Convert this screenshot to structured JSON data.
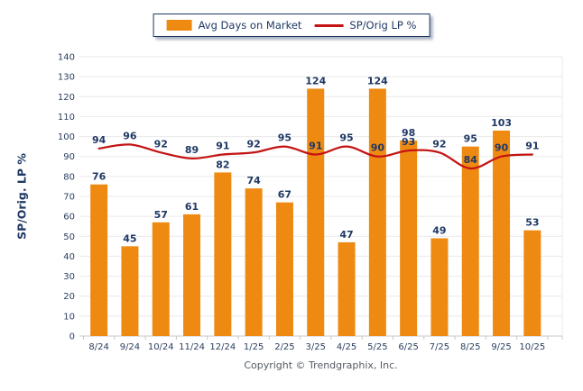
{
  "legend": {
    "bar_label": "Avg Days on Market",
    "line_label": "SP/Orig LP %"
  },
  "y_axis_title": "SP/Orig. LP %",
  "footer": {
    "copyright": "Copyright © Trendgraphix, Inc."
  },
  "colors": {
    "bar": "#EE8A12",
    "line": "#C41414",
    "value_label": "#1F3864",
    "tick_label": "#2A3F5F",
    "grid": "#E9E9E9",
    "axis": "#C8C8C8"
  },
  "chart_data": {
    "type": "bar",
    "title": "",
    "categories": [
      "8/24",
      "9/24",
      "10/24",
      "11/24",
      "12/24",
      "1/25",
      "2/25",
      "3/25",
      "4/25",
      "5/25",
      "6/25",
      "7/25",
      "8/25",
      "9/25",
      "10/25"
    ],
    "series": [
      {
        "name": "Avg Days on Market",
        "type": "bar",
        "values": [
          76,
          45,
          57,
          61,
          82,
          74,
          67,
          124,
          47,
          124,
          98,
          49,
          95,
          103,
          53
        ]
      },
      {
        "name": "SP/Orig LP %",
        "type": "line",
        "values": [
          94,
          96,
          92,
          89,
          91,
          92,
          95,
          91,
          95,
          90,
          93,
          92,
          84,
          90,
          91
        ]
      }
    ],
    "xlabel": "",
    "ylabel": "SP/Orig. LP %",
    "ylim": [
      0,
      140
    ],
    "ytick_step": 10,
    "grid": true,
    "legend_position": "top",
    "data_labels": true
  }
}
